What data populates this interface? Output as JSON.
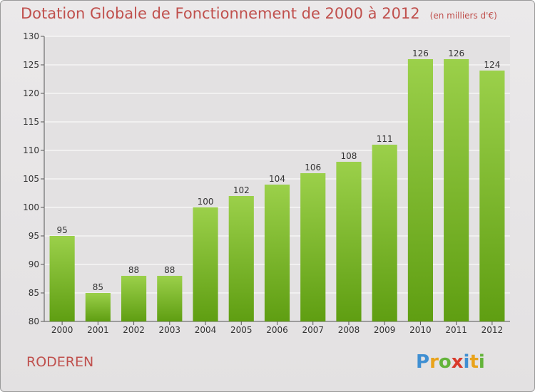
{
  "title": "Dotation Globale de Fonctionnement de 2000 à 2012",
  "unit_note": "(en milliers d'€)",
  "commune": "RODEREN",
  "brand": "Proxiti",
  "colors": {
    "bar_top": "#9bd04a",
    "bar_bottom": "#5f9e12",
    "title": "#c0504d",
    "grid": "#ffffff"
  },
  "chart_data": {
    "type": "bar",
    "title": "Dotation Globale de Fonctionnement de 2000 à 2012",
    "categories": [
      "2000",
      "2001",
      "2002",
      "2003",
      "2004",
      "2005",
      "2006",
      "2007",
      "2008",
      "2009",
      "2010",
      "2011",
      "2012"
    ],
    "values": [
      95,
      85,
      88,
      88,
      100,
      102,
      104,
      106,
      108,
      111,
      126,
      126,
      124
    ],
    "ylim": [
      80,
      130
    ],
    "yticks": [
      80,
      85,
      90,
      95,
      100,
      105,
      110,
      115,
      120,
      125,
      130
    ],
    "xlabel": "",
    "ylabel": "",
    "grid": true,
    "data_labels": true
  }
}
